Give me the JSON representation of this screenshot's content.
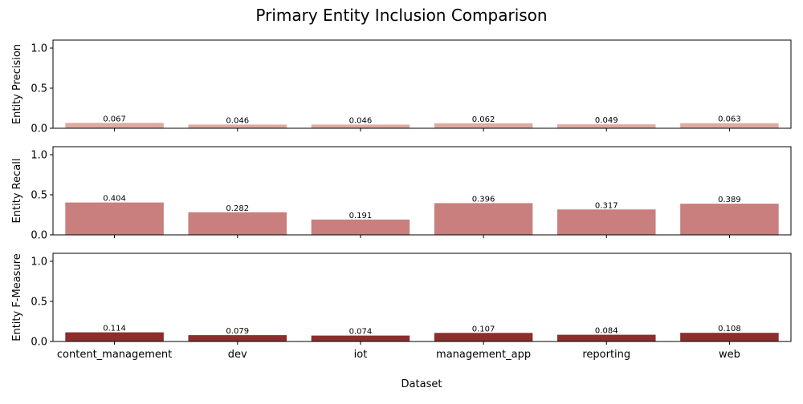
{
  "chart_data": {
    "type": "bar",
    "title": "Primary Entity Inclusion Comparison",
    "xlabel": "Dataset",
    "categories": [
      "content_management",
      "dev",
      "iot",
      "management_app",
      "reporting",
      "web"
    ],
    "grid": false,
    "panels": [
      {
        "ylabel": "Entity Precision",
        "ylim": [
          0,
          1.1
        ],
        "yticks": [
          "0.0",
          "0.5",
          "1.0"
        ],
        "values": [
          0.067,
          0.046,
          0.046,
          0.062,
          0.049,
          0.063
        ],
        "labels": [
          "0.067",
          "0.046",
          "0.046",
          "0.062",
          "0.049",
          "0.063"
        ],
        "color": "#e0aaa0"
      },
      {
        "ylabel": "Entity Recall",
        "ylim": [
          0,
          1.1
        ],
        "yticks": [
          "0.0",
          "0.5",
          "1.0"
        ],
        "values": [
          0.404,
          0.282,
          0.191,
          0.396,
          0.317,
          0.389
        ],
        "labels": [
          "0.404",
          "0.282",
          "0.191",
          "0.396",
          "0.317",
          "0.389"
        ],
        "color": "#c87f7e"
      },
      {
        "ylabel": "Entity F-Measure",
        "ylim": [
          0,
          1.1
        ],
        "yticks": [
          "0.0",
          "0.5",
          "1.0"
        ],
        "values": [
          0.114,
          0.079,
          0.074,
          0.107,
          0.084,
          0.108
        ],
        "labels": [
          "0.114",
          "0.079",
          "0.074",
          "0.107",
          "0.084",
          "0.108"
        ],
        "color": "#8b2e2e"
      }
    ]
  }
}
